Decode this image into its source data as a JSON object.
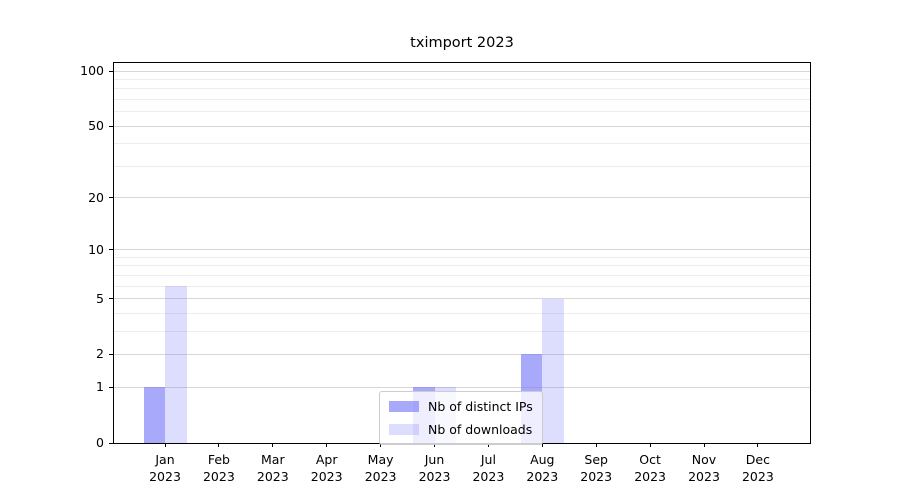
{
  "chart_data": {
    "type": "bar",
    "title": "tximport 2023",
    "categories": [
      "Jan",
      "Feb",
      "Mar",
      "Apr",
      "May",
      "Jun",
      "Jul",
      "Aug",
      "Sep",
      "Oct",
      "Nov",
      "Dec"
    ],
    "category_year": "2023",
    "series": [
      {
        "name": "Nb of distinct IPs",
        "color": "rgba(124,124,249,0.66)",
        "values": [
          1,
          0,
          0,
          0,
          0,
          1,
          0,
          2,
          0,
          0,
          0,
          0
        ]
      },
      {
        "name": "Nb of downloads",
        "color": "rgba(124,124,249,0.26)",
        "values": [
          6,
          0,
          0,
          0,
          0,
          1,
          0,
          5,
          0,
          0,
          0,
          0
        ]
      }
    ],
    "xlabel": "",
    "ylabel": "",
    "yscale": "log10(1+v)",
    "ylim": [
      0,
      110
    ],
    "y_major_ticks": [
      0,
      1,
      2,
      5,
      10,
      20,
      50,
      100
    ],
    "y_minor_gridlines": [
      3,
      4,
      6,
      7,
      8,
      9,
      30,
      40,
      60,
      70,
      80,
      90
    ],
    "grid": "horizontal major and minor gridlines",
    "legend_position": "lower center",
    "colors": {
      "major_grid": "#d7d7d7",
      "minor_grid": "#ececec",
      "axis": "#000000",
      "background": "#ffffff"
    }
  }
}
